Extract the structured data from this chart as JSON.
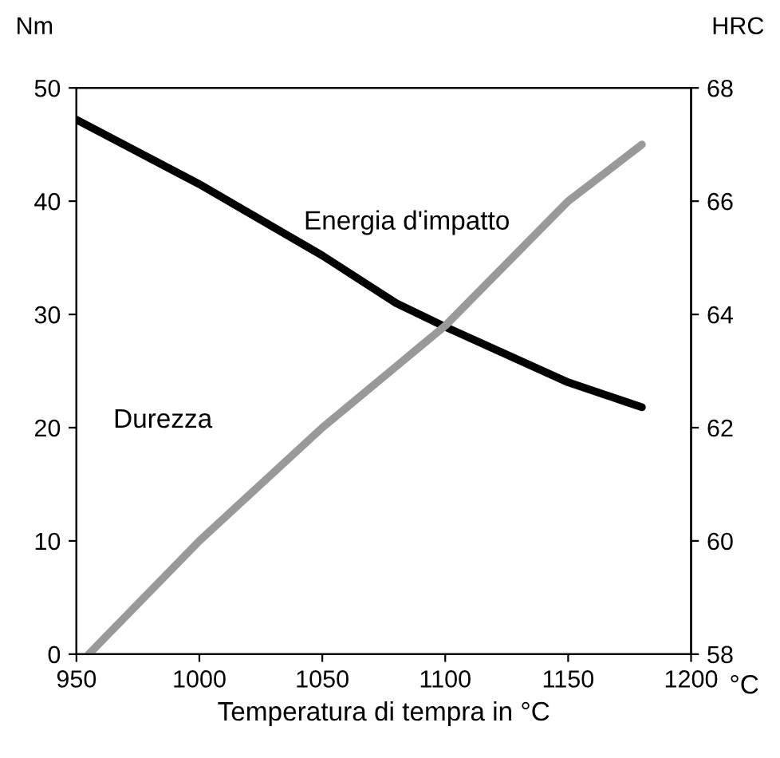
{
  "chart_data": {
    "type": "line",
    "xlabel": "Temperatura di tempra in °C",
    "ylabel": "Nm",
    "y2label": "HRC",
    "annotations": [
      "°C"
    ],
    "xlim": [
      950,
      1200
    ],
    "xticks": [
      950,
      1000,
      1050,
      1100,
      1150,
      1200
    ],
    "ylim": [
      0,
      50
    ],
    "yticks": [
      0,
      10,
      20,
      30,
      40,
      50
    ],
    "y2lim": [
      58,
      68
    ],
    "y2ticks": [
      58,
      60,
      62,
      64,
      66,
      68
    ],
    "grid": false,
    "legend": false,
    "marker": "none",
    "line_style": "solid",
    "series": [
      {
        "name": "Energia d'impatto",
        "color": "#000000",
        "x": [
          950,
          1000,
          1050,
          1080,
          1100,
          1150,
          1180
        ],
        "values": [
          47.2,
          41.5,
          35.2,
          31,
          28.9,
          24,
          21.8
        ]
      },
      {
        "name": "Durezza",
        "color": "#999999",
        "axis": "y2",
        "x": [
          955,
          1000,
          1050,
          1100,
          1150,
          1180
        ],
        "values": [
          58,
          60,
          62,
          63.8,
          66,
          67
        ]
      }
    ]
  }
}
